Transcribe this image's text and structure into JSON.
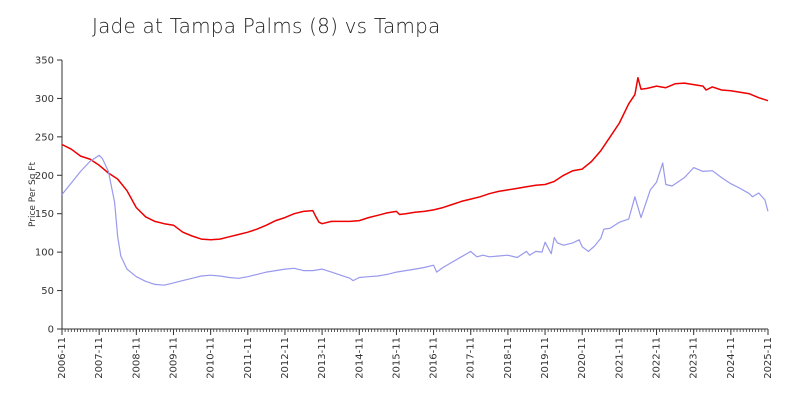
{
  "chart_data": {
    "type": "line",
    "title": "Jade at Tampa Palms (8) vs Tampa",
    "xlabel": "",
    "ylabel": "Price Per Sq Ft",
    "ylim": [
      0,
      350
    ],
    "yticks": [
      0,
      50,
      100,
      150,
      200,
      250,
      300,
      350
    ],
    "x_range": [
      "2006-11",
      "2025-11"
    ],
    "xticks": [
      "2006-11",
      "2007-11",
      "2008-11",
      "2009-11",
      "2010-11",
      "2011-11",
      "2012-11",
      "2013-11",
      "2014-11",
      "2015-11",
      "2016-11",
      "2017-11",
      "2018-11",
      "2019-11",
      "2020-11",
      "2021-11",
      "2022-11",
      "2023-11",
      "2024-11",
      "2025-11"
    ],
    "grid": false,
    "legend": "none",
    "series": [
      {
        "color": "#ee0000",
        "points": [
          [
            "2006-11",
            240
          ],
          [
            "2007-02",
            234
          ],
          [
            "2007-05",
            225
          ],
          [
            "2007-08",
            221
          ],
          [
            "2007-11",
            213
          ],
          [
            "2008-02",
            203
          ],
          [
            "2008-05",
            195
          ],
          [
            "2008-08",
            180
          ],
          [
            "2008-11",
            158
          ],
          [
            "2009-02",
            146
          ],
          [
            "2009-05",
            140
          ],
          [
            "2009-08",
            137
          ],
          [
            "2009-11",
            135
          ],
          [
            "2010-02",
            126
          ],
          [
            "2010-05",
            121
          ],
          [
            "2010-08",
            117
          ],
          [
            "2010-11",
            116
          ],
          [
            "2011-02",
            117
          ],
          [
            "2011-05",
            120
          ],
          [
            "2011-08",
            123
          ],
          [
            "2011-11",
            126
          ],
          [
            "2012-02",
            130
          ],
          [
            "2012-05",
            135
          ],
          [
            "2012-08",
            141
          ],
          [
            "2012-11",
            145
          ],
          [
            "2013-02",
            150
          ],
          [
            "2013-05",
            153
          ],
          [
            "2013-08",
            154
          ],
          [
            "2013-09",
            146
          ],
          [
            "2013-10",
            139
          ],
          [
            "2013-11",
            137
          ],
          [
            "2014-02",
            140
          ],
          [
            "2014-05",
            140
          ],
          [
            "2014-08",
            140
          ],
          [
            "2014-11",
            141
          ],
          [
            "2015-02",
            145
          ],
          [
            "2015-05",
            148
          ],
          [
            "2015-08",
            151
          ],
          [
            "2015-11",
            153
          ],
          [
            "2015-12",
            149
          ],
          [
            "2016-02",
            150
          ],
          [
            "2016-05",
            152
          ],
          [
            "2016-08",
            153
          ],
          [
            "2016-11",
            155
          ],
          [
            "2017-02",
            158
          ],
          [
            "2017-05",
            162
          ],
          [
            "2017-08",
            166
          ],
          [
            "2017-11",
            169
          ],
          [
            "2018-02",
            172
          ],
          [
            "2018-05",
            176
          ],
          [
            "2018-08",
            179
          ],
          [
            "2018-11",
            181
          ],
          [
            "2019-02",
            183
          ],
          [
            "2019-05",
            185
          ],
          [
            "2019-08",
            187
          ],
          [
            "2019-11",
            188
          ],
          [
            "2020-02",
            192
          ],
          [
            "2020-05",
            200
          ],
          [
            "2020-08",
            206
          ],
          [
            "2020-11",
            208
          ],
          [
            "2021-02",
            218
          ],
          [
            "2021-05",
            232
          ],
          [
            "2021-08",
            250
          ],
          [
            "2021-11",
            268
          ],
          [
            "2022-02",
            293
          ],
          [
            "2022-04",
            305
          ],
          [
            "2022-05",
            327
          ],
          [
            "2022-06",
            312
          ],
          [
            "2022-08",
            313
          ],
          [
            "2022-11",
            316
          ],
          [
            "2023-02",
            314
          ],
          [
            "2023-05",
            319
          ],
          [
            "2023-08",
            320
          ],
          [
            "2023-11",
            318
          ],
          [
            "2024-02",
            316
          ],
          [
            "2024-03",
            311
          ],
          [
            "2024-05",
            315
          ],
          [
            "2024-08",
            311
          ],
          [
            "2024-11",
            310
          ],
          [
            "2025-02",
            308
          ],
          [
            "2025-05",
            306
          ],
          [
            "2025-08",
            301
          ],
          [
            "2025-11",
            297
          ]
        ]
      },
      {
        "color": "#9999ee",
        "points": [
          [
            "2006-11",
            175
          ],
          [
            "2007-02",
            190
          ],
          [
            "2007-05",
            205
          ],
          [
            "2007-08",
            218
          ],
          [
            "2007-11",
            226
          ],
          [
            "2007-12",
            222
          ],
          [
            "2008-02",
            205
          ],
          [
            "2008-04",
            165
          ],
          [
            "2008-05",
            120
          ],
          [
            "2008-06",
            95
          ],
          [
            "2008-08",
            78
          ],
          [
            "2008-11",
            68
          ],
          [
            "2009-02",
            62
          ],
          [
            "2009-05",
            58
          ],
          [
            "2009-08",
            57
          ],
          [
            "2009-11",
            60
          ],
          [
            "2010-02",
            63
          ],
          [
            "2010-05",
            66
          ],
          [
            "2010-08",
            69
          ],
          [
            "2010-11",
            70
          ],
          [
            "2011-02",
            69
          ],
          [
            "2011-05",
            67
          ],
          [
            "2011-08",
            66
          ],
          [
            "2011-11",
            68
          ],
          [
            "2012-02",
            71
          ],
          [
            "2012-05",
            74
          ],
          [
            "2012-08",
            76
          ],
          [
            "2012-11",
            78
          ],
          [
            "2013-02",
            79
          ],
          [
            "2013-05",
            76
          ],
          [
            "2013-08",
            76
          ],
          [
            "2013-11",
            78
          ],
          [
            "2014-02",
            74
          ],
          [
            "2014-05",
            70
          ],
          [
            "2014-08",
            66
          ],
          [
            "2014-09",
            63
          ],
          [
            "2014-11",
            67
          ],
          [
            "2015-02",
            68
          ],
          [
            "2015-05",
            69
          ],
          [
            "2015-08",
            71
          ],
          [
            "2015-11",
            74
          ],
          [
            "2016-02",
            76
          ],
          [
            "2016-05",
            78
          ],
          [
            "2016-08",
            80
          ],
          [
            "2016-11",
            83
          ],
          [
            "2016-12",
            74
          ],
          [
            "2017-02",
            80
          ],
          [
            "2017-05",
            87
          ],
          [
            "2017-08",
            94
          ],
          [
            "2017-11",
            101
          ],
          [
            "2018-01",
            94
          ],
          [
            "2018-03",
            96
          ],
          [
            "2018-05",
            94
          ],
          [
            "2018-08",
            95
          ],
          [
            "2018-11",
            96
          ],
          [
            "2019-02",
            93
          ],
          [
            "2019-05",
            101
          ],
          [
            "2019-06",
            96
          ],
          [
            "2019-08",
            101
          ],
          [
            "2019-10",
            100
          ],
          [
            "2019-11",
            113
          ],
          [
            "2020-01",
            98
          ],
          [
            "2020-02",
            119
          ],
          [
            "2020-03",
            112
          ],
          [
            "2020-05",
            109
          ],
          [
            "2020-08",
            112
          ],
          [
            "2020-10",
            116
          ],
          [
            "2020-11",
            107
          ],
          [
            "2021-01",
            101
          ],
          [
            "2021-03",
            108
          ],
          [
            "2021-05",
            118
          ],
          [
            "2021-06",
            130
          ],
          [
            "2021-08",
            131
          ],
          [
            "2021-11",
            139
          ],
          [
            "2022-02",
            143
          ],
          [
            "2022-04",
            172
          ],
          [
            "2022-06",
            145
          ],
          [
            "2022-09",
            181
          ],
          [
            "2022-11",
            191
          ],
          [
            "2023-01",
            216
          ],
          [
            "2023-02",
            188
          ],
          [
            "2023-04",
            186
          ],
          [
            "2023-08",
            197
          ],
          [
            "2023-11",
            210
          ],
          [
            "2024-02",
            205
          ],
          [
            "2024-05",
            206
          ],
          [
            "2024-08",
            197
          ],
          [
            "2024-11",
            189
          ],
          [
            "2025-02",
            183
          ],
          [
            "2025-05",
            176
          ],
          [
            "2025-06",
            172
          ],
          [
            "2025-08",
            177
          ],
          [
            "2025-10",
            168
          ],
          [
            "2025-11",
            153
          ]
        ]
      }
    ]
  }
}
